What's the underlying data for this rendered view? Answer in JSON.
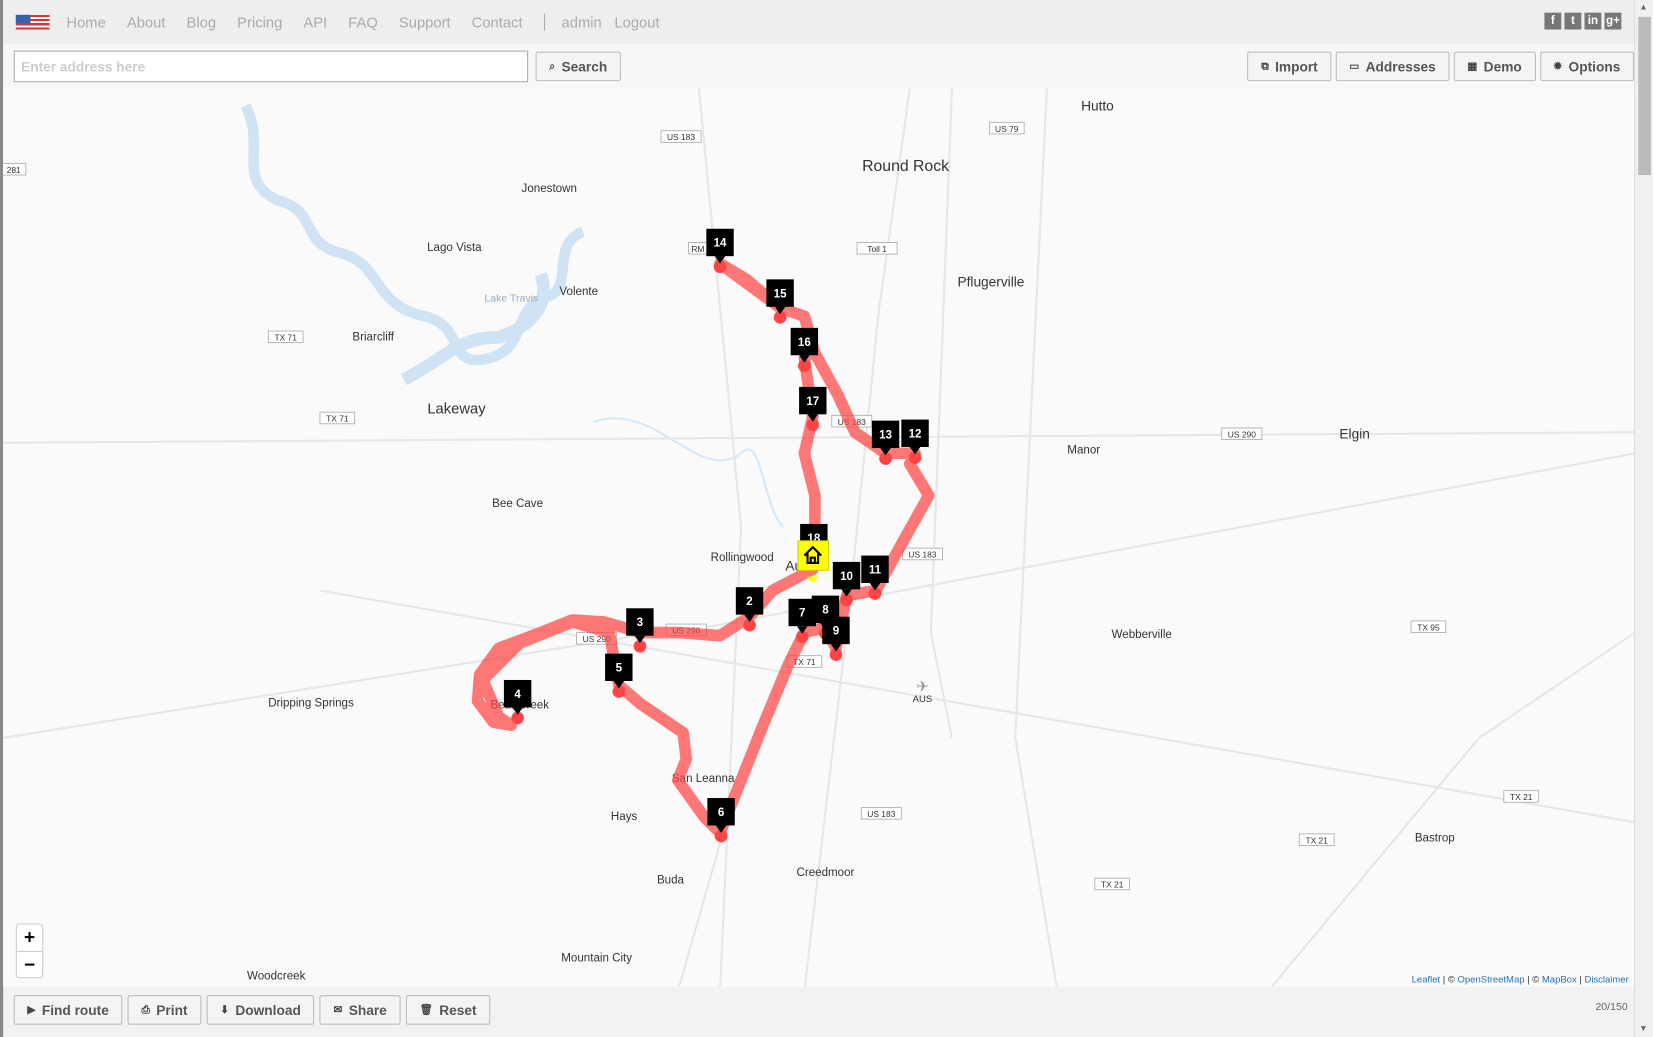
{
  "nav": {
    "links": [
      "Home",
      "About",
      "Blog",
      "Pricing",
      "API",
      "FAQ",
      "Support",
      "Contact"
    ],
    "user": "admin",
    "logout": "Logout",
    "social": [
      "f",
      "t",
      "in",
      "g+"
    ]
  },
  "search": {
    "placeholder": "Enter address here",
    "value": "",
    "button": "Search"
  },
  "actions": {
    "import": "Import",
    "addresses": "Addresses",
    "demo": "Demo",
    "options": "Options"
  },
  "map": {
    "places": [
      "Hutto",
      "Round Rock",
      "Jonestown",
      "Lago Vista",
      "Volente",
      "Lake Travis",
      "Pflugerville",
      "Briarcliff",
      "Lakeway",
      "Manor",
      "Elgin",
      "Bee Cave",
      "Rollingwood",
      "Austin",
      "Webberville",
      "Dripping Springs",
      "Bear Creek",
      "San Leanna",
      "Hays",
      "Buda",
      "Creedmoor",
      "Bastrop",
      "Mountain City",
      "Woodcreek",
      "AUS"
    ],
    "shields": [
      "US 183",
      "US 79",
      "Toll 1",
      "RM",
      "TX 71",
      "TX 71",
      "US 183",
      "US 290",
      "US 183",
      "US 290",
      "US 290",
      "TX 71",
      "TX 95",
      "US 183",
      "TX 21",
      "TX 21",
      "TX 21",
      "281"
    ],
    "stops": [
      "2",
      "3",
      "4",
      "5",
      "6",
      "7",
      "8",
      "9",
      "10",
      "11",
      "12",
      "13",
      "14",
      "15",
      "16",
      "17",
      "18"
    ],
    "route_color": "#ff4444",
    "home_color": "#ffff00",
    "zoom_in": "+",
    "zoom_out": "−",
    "attribution": {
      "leaflet": "Leaflet",
      "osm": "OpenStreetMap",
      "mapbox": "MapBox",
      "disclaimer": "Disclaimer"
    }
  },
  "bottom": {
    "find_route": "Find route",
    "print": "Print",
    "download": "Download",
    "share": "Share",
    "reset": "Reset",
    "counter": "20/150"
  }
}
